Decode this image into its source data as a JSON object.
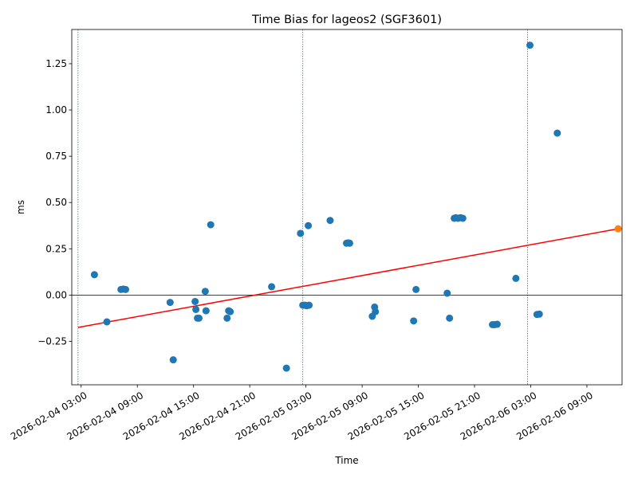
{
  "chart_data": {
    "type": "scatter",
    "title": "Time Bias for lageos2 (SGF3601)",
    "xlabel": "Time",
    "ylabel": "ms",
    "x_tick_labels": [
      "2026-02-04 03:00",
      "2026-02-04 09:00",
      "2026-02-04 15:00",
      "2026-02-04 21:00",
      "2026-02-05 03:00",
      "2026-02-05 09:00",
      "2026-02-05 15:00",
      "2026-02-05 21:00",
      "2026-02-06 03:00",
      "2026-02-06 09:00"
    ],
    "y_ticks": [
      -0.25,
      0.0,
      0.25,
      0.5,
      0.75,
      1.0,
      1.25
    ],
    "y_tick_labels": [
      "−0.25",
      "0.00",
      "0.25",
      "0.50",
      "0.75",
      "1.00",
      "1.25"
    ],
    "xlim": [
      "2026-02-04 02:00",
      "2026-02-06 12:45"
    ],
    "ylim": [
      -0.485,
      1.435
    ],
    "grid": false,
    "legend": "none",
    "zero_line": {
      "y": 0.0,
      "color": "#000000"
    },
    "vertical_markers": {
      "x": [
        "2026-02-04 02:40",
        "2026-02-05 02:40",
        "2026-02-06 02:40"
      ],
      "color": "#1f77b4",
      "style": "dotted"
    },
    "points": [
      {
        "x": "2026-02-04 04:25",
        "y": 0.11
      },
      {
        "x": "2026-02-04 05:45",
        "y": -0.145
      },
      {
        "x": "2026-02-04 07:15",
        "y": 0.03
      },
      {
        "x": "2026-02-04 07:30",
        "y": 0.032
      },
      {
        "x": "2026-02-04 07:45",
        "y": 0.03
      },
      {
        "x": "2026-02-04 12:30",
        "y": -0.04
      },
      {
        "x": "2026-02-04 12:50",
        "y": -0.35
      },
      {
        "x": "2026-02-04 15:10",
        "y": -0.035
      },
      {
        "x": "2026-02-04 15:15",
        "y": -0.078
      },
      {
        "x": "2026-02-04 15:25",
        "y": -0.125
      },
      {
        "x": "2026-02-04 15:35",
        "y": -0.125
      },
      {
        "x": "2026-02-04 16:15",
        "y": 0.02
      },
      {
        "x": "2026-02-04 16:20",
        "y": -0.085
      },
      {
        "x": "2026-02-04 16:50",
        "y": 0.38
      },
      {
        "x": "2026-02-04 18:35",
        "y": -0.125
      },
      {
        "x": "2026-02-04 18:45",
        "y": -0.085
      },
      {
        "x": "2026-02-04 18:55",
        "y": -0.09
      },
      {
        "x": "2026-02-04 23:20",
        "y": 0.045
      },
      {
        "x": "2026-02-05 00:55",
        "y": -0.395
      },
      {
        "x": "2026-02-05 02:25",
        "y": 0.333
      },
      {
        "x": "2026-02-05 02:40",
        "y": -0.055
      },
      {
        "x": "2026-02-05 02:55",
        "y": -0.055
      },
      {
        "x": "2026-02-05 03:05",
        "y": -0.058
      },
      {
        "x": "2026-02-05 03:20",
        "y": -0.055
      },
      {
        "x": "2026-02-05 03:15",
        "y": 0.375
      },
      {
        "x": "2026-02-05 05:35",
        "y": 0.403
      },
      {
        "x": "2026-02-05 07:20",
        "y": 0.28
      },
      {
        "x": "2026-02-05 07:30",
        "y": 0.282
      },
      {
        "x": "2026-02-05 07:40",
        "y": 0.28
      },
      {
        "x": "2026-02-05 10:05",
        "y": -0.115
      },
      {
        "x": "2026-02-05 10:20",
        "y": -0.065
      },
      {
        "x": "2026-02-05 10:25",
        "y": -0.09
      },
      {
        "x": "2026-02-05 14:30",
        "y": -0.14
      },
      {
        "x": "2026-02-05 14:45",
        "y": 0.03
      },
      {
        "x": "2026-02-05 18:05",
        "y": 0.01
      },
      {
        "x": "2026-02-05 18:20",
        "y": -0.125
      },
      {
        "x": "2026-02-05 18:50",
        "y": 0.415
      },
      {
        "x": "2026-02-05 19:00",
        "y": 0.418
      },
      {
        "x": "2026-02-05 19:15",
        "y": 0.415
      },
      {
        "x": "2026-02-05 19:30",
        "y": 0.418
      },
      {
        "x": "2026-02-05 19:45",
        "y": 0.415
      },
      {
        "x": "2026-02-05 22:55",
        "y": -0.16
      },
      {
        "x": "2026-02-05 23:10",
        "y": -0.16
      },
      {
        "x": "2026-02-05 23:25",
        "y": -0.158
      },
      {
        "x": "2026-02-06 01:25",
        "y": 0.09
      },
      {
        "x": "2026-02-06 02:55",
        "y": 1.35
      },
      {
        "x": "2026-02-06 03:40",
        "y": -0.105
      },
      {
        "x": "2026-02-06 03:55",
        "y": -0.103
      },
      {
        "x": "2026-02-06 05:50",
        "y": 0.875
      }
    ],
    "highlight_point": {
      "x": "2026-02-06 12:20",
      "y": 0.358,
      "color": "#ff7f0e"
    },
    "trend_line": {
      "x": [
        "2026-02-04 02:40",
        "2026-02-06 12:20"
      ],
      "y": [
        -0.175,
        0.358
      ],
      "color": "#ff0000"
    },
    "point_color": "#1f77b4"
  }
}
